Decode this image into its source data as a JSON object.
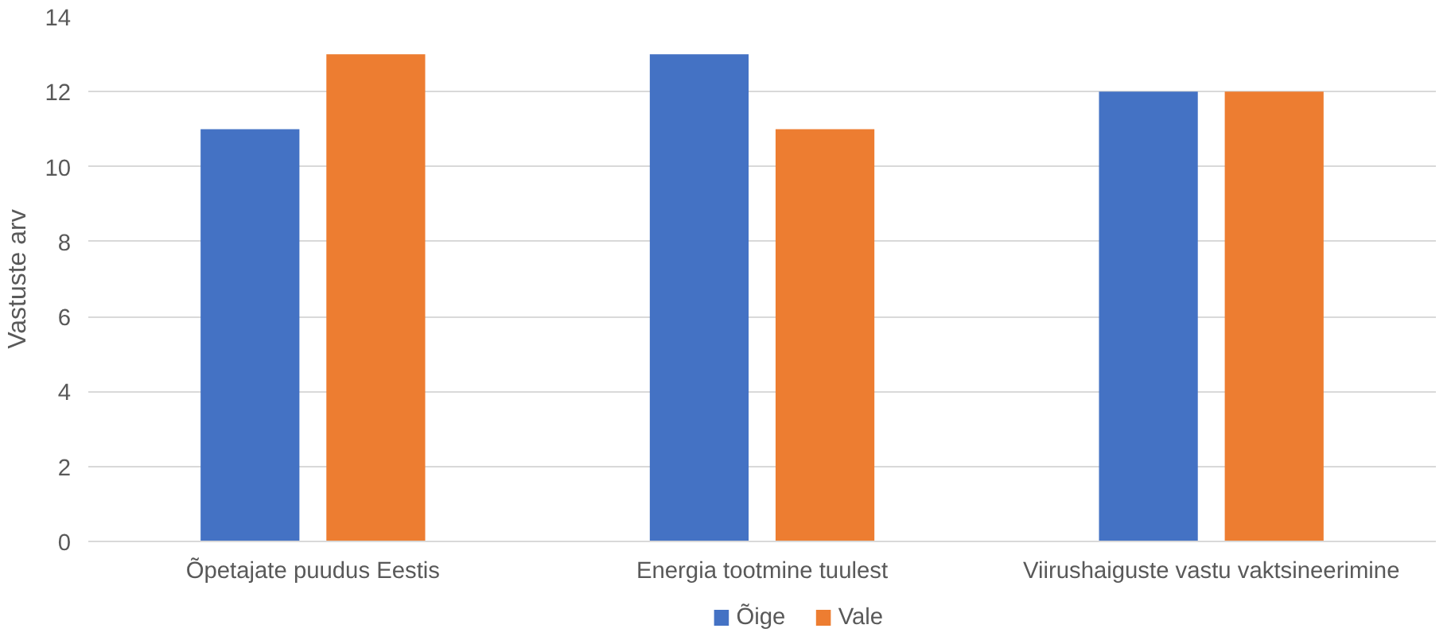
{
  "chart_data": {
    "type": "bar",
    "ylabel": "Vastuste arv",
    "categories": [
      "Õpetajate puudus Eestis",
      "Energia tootmine tuulest",
      "Viirushaiguste vastu vaktsineerimine"
    ],
    "series": [
      {
        "name": "Õige",
        "color": "#4472c4",
        "values": [
          11,
          13,
          12
        ]
      },
      {
        "name": "Vale",
        "color": "#ed7d31",
        "values": [
          13,
          11,
          12
        ]
      }
    ],
    "ylim": [
      0,
      14
    ],
    "yticks": [
      0,
      2,
      4,
      6,
      8,
      10,
      12,
      14
    ],
    "grid": "y",
    "legend": "bottom"
  }
}
